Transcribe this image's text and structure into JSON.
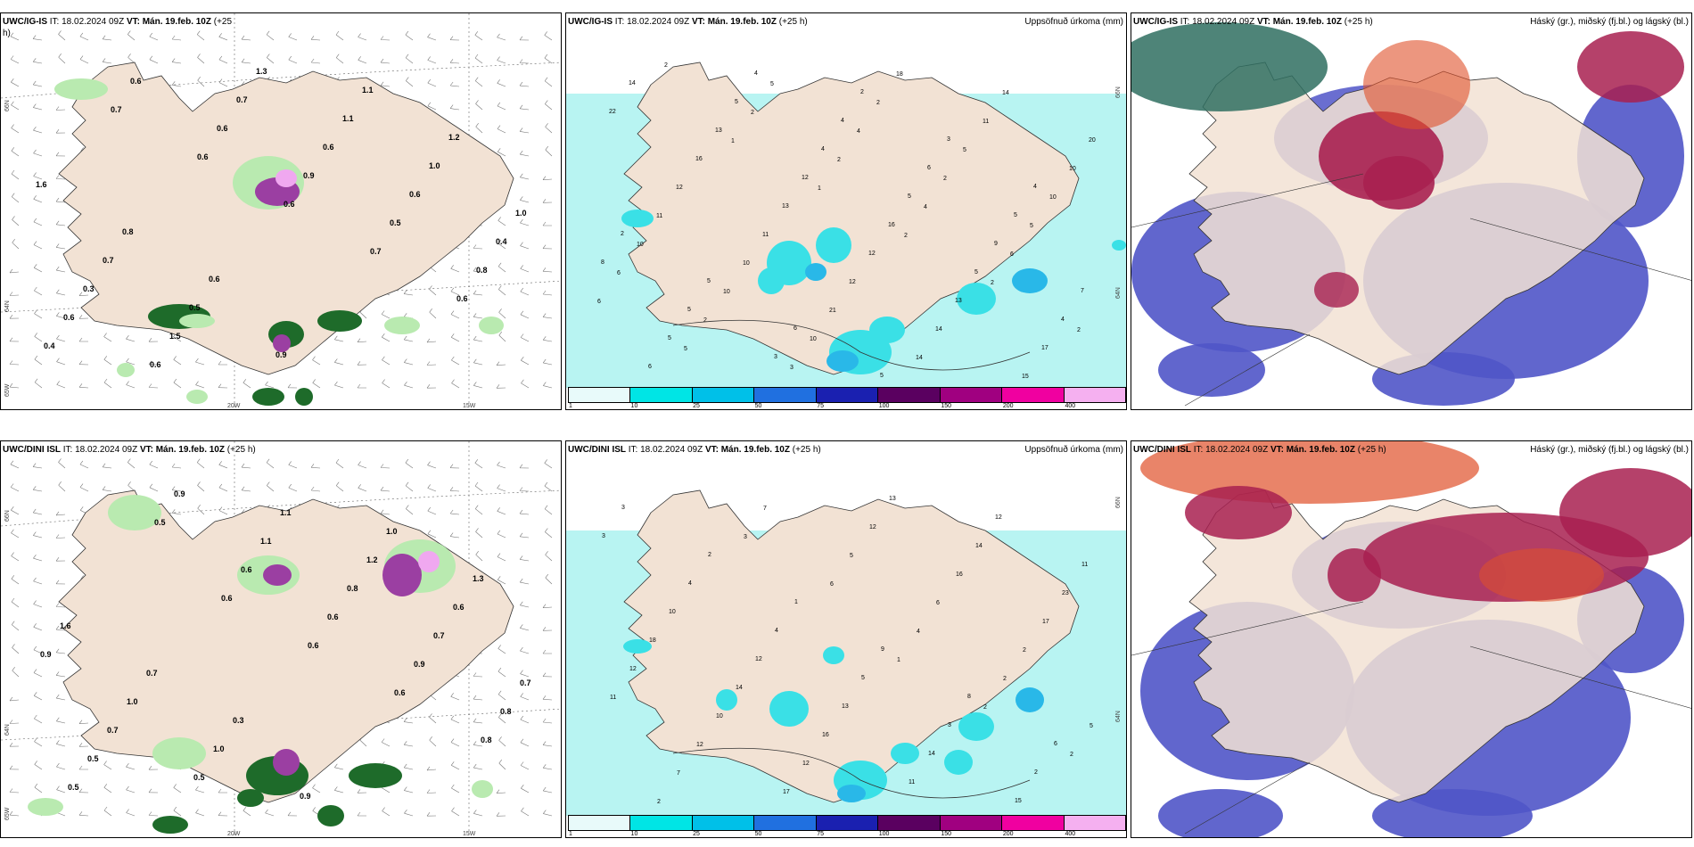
{
  "panels": [
    {
      "id": "r1c1",
      "title_prefix": "UWC/IG-IS",
      "title_it": " IT: 18.02.2024 09Z ",
      "title_vt_label": "VT: Mán. 19.feb. 10Z",
      "title_suffix": " (+25",
      "title_wrap": "h)",
      "lat_labels": [
        "66N",
        "64N",
        "65W"
      ],
      "lon_labels": [
        "20W",
        "15W"
      ],
      "values": [
        "0.7",
        "0.6",
        "0.6",
        "0.7",
        "0.6",
        "0.4",
        "0.6",
        "0.6",
        "0.9",
        "0.5",
        "0.8",
        "0.6",
        "0.6",
        "0.7",
        "0.6",
        "0.6",
        "0.4",
        "0.3",
        "1.5",
        "1.3",
        "1.1",
        "1.0",
        "1.0",
        "0.7",
        "0.5",
        "0.9",
        "1.1",
        "1.2",
        "1.6",
        "0.8",
        "0.6"
      ]
    },
    {
      "id": "r1c2",
      "title_prefix": "UWC/IG-IS",
      "title_it": " IT: 18.02.2024 09Z ",
      "title_vt_label": "VT: Mán. 19.feb. 10Z",
      "title_suffix": " (+25 h)",
      "title_right": "Uppsöfnuð úrkoma (mm)",
      "lat_labels": [
        "66N",
        "64N"
      ],
      "colorbar_ticks": [
        "1",
        "10",
        "25",
        "50",
        "75",
        "100",
        "150",
        "200",
        "400"
      ],
      "values": [
        "1",
        "1",
        "2",
        "2",
        "2",
        "2",
        "2",
        "2",
        "4",
        "6",
        "6",
        "5",
        "5",
        "4",
        "2",
        "5",
        "6",
        "2",
        "3",
        "2",
        "5",
        "10",
        "10",
        "10",
        "10",
        "18",
        "11",
        "10",
        "11",
        "10",
        "21",
        "14",
        "14",
        "20",
        "12",
        "11",
        "12",
        "14",
        "15",
        "22",
        "16",
        "13",
        "12",
        "13",
        "17",
        "14",
        "13",
        "12",
        "16",
        "5",
        "4",
        "6",
        "5",
        "4",
        "5",
        "9",
        "7",
        "5",
        "4",
        "4",
        "6",
        "5",
        "8",
        "5",
        "3",
        "2",
        "3",
        "4",
        "2",
        "5",
        "6",
        "5"
      ]
    },
    {
      "id": "r1c3",
      "title_prefix": "UWC/IG-IS",
      "title_it": " IT: 18.02.2024 09Z ",
      "title_vt_label": "VT: Mán. 19.feb. 10Z",
      "title_suffix": " (+25 h)",
      "title_right": "Háský (gr.), miðský (fj.bl.) og lágský (bl.)"
    },
    {
      "id": "r2c1",
      "title_prefix": "UWC/DINI ISL",
      "title_it": " IT: 18.02.2024 09Z ",
      "title_vt_label": "VT: Mán. 19.feb. 10Z",
      "title_suffix": " (+25 h)",
      "lat_labels": [
        "66N",
        "64N",
        "65W"
      ],
      "lon_labels": [
        "20W",
        "15W"
      ],
      "values": [
        "0.6",
        "0.6",
        "0.6",
        "0.8",
        "0.5",
        "0.5",
        "0.6",
        "0.6",
        "0.9",
        "0.8",
        "0.5",
        "0.9",
        "1.1",
        "0.8",
        "0.7",
        "0.7",
        "0.7",
        "0.5",
        "1.1",
        "1.2",
        "0.6",
        "0.9",
        "1.0",
        "1.0",
        "0.9",
        "1.0",
        "1.3",
        "1.6",
        "0.7",
        "0.3"
      ]
    },
    {
      "id": "r2c2",
      "title_prefix": "UWC/DINI ISL",
      "title_it": " IT: 18.02.2024 09Z ",
      "title_vt_label": "VT: Mán. 19.feb. 10Z",
      "title_suffix": " (+25 h)",
      "title_right": "Uppsöfnuð úrkoma (mm)",
      "lat_labels": [
        "66N",
        "64N"
      ],
      "colorbar_ticks": [
        "1",
        "10",
        "25",
        "50",
        "75",
        "100",
        "150",
        "200",
        "400"
      ],
      "values": [
        "1",
        "2",
        "2",
        "2",
        "3",
        "6",
        "4",
        "2",
        "5",
        "7",
        "7",
        "5",
        "6",
        "2",
        "11",
        "12",
        "17",
        "12",
        "16",
        "17",
        "12",
        "10",
        "12",
        "13",
        "14",
        "23",
        "18",
        "14",
        "16",
        "11",
        "12",
        "11",
        "10",
        "12",
        "13",
        "14",
        "15",
        "3",
        "4",
        "4",
        "5",
        "3",
        "2",
        "3",
        "2",
        "1",
        "9",
        "8",
        "6"
      ]
    },
    {
      "id": "r2c3",
      "title_prefix": "UWC/DINI ISL",
      "title_it": " IT: 18.02.2024 09Z ",
      "title_vt_label": "VT: Mán. 19.feb. 10Z",
      "title_suffix": " (+25 h)",
      "title_right": "Háský (gr.), miðský (fj.bl.) og lágský (bl.)"
    }
  ],
  "colors": {
    "land": "#f2e2d4",
    "precip_light": "#b8f4f2",
    "precip_med": "#3ae0e6",
    "precip_strong": "#29b8e8",
    "green_light": "#b9eab0",
    "green_dark": "#1e6b2a",
    "purple": "#9b3fa2",
    "pink": "#f0a8f0",
    "cloud_low": "#5055c8",
    "cloud_mid": "#a82050",
    "cloud_high_red": "#e0502a",
    "cloud_high_teal": "#2f6e60",
    "colorbar": [
      "#e8fafa",
      "#00e5e5",
      "#00c0e8",
      "#2070e0",
      "#1a20b0",
      "#5a0060",
      "#a00080",
      "#f000a0",
      "#f5b0f0"
    ]
  }
}
